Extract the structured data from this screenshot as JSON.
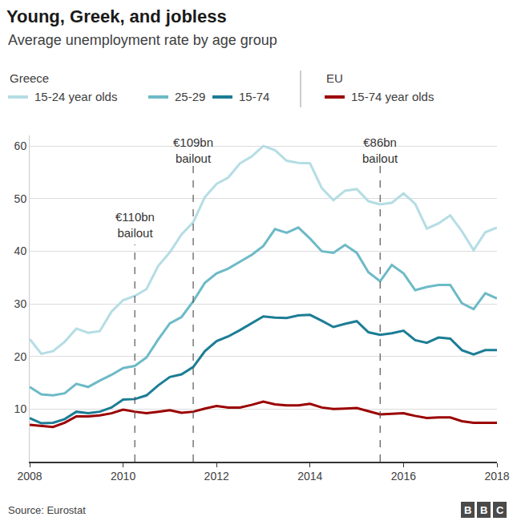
{
  "chart_data": {
    "type": "line",
    "title": "Young, Greek, and jobless",
    "subtitle": "Average unemployment rate by age group",
    "source": "Source: Eurostat",
    "logo": "BBC",
    "x": [
      2008,
      2008.25,
      2008.5,
      2008.75,
      2009,
      2009.25,
      2009.5,
      2009.75,
      2010,
      2010.25,
      2010.5,
      2010.75,
      2011,
      2011.25,
      2011.5,
      2011.75,
      2012,
      2012.25,
      2012.5,
      2012.75,
      2013,
      2013.25,
      2013.5,
      2013.75,
      2014,
      2014.25,
      2014.5,
      2014.75,
      2015,
      2015.25,
      2015.5,
      2015.75,
      2016,
      2016.25,
      2016.5,
      2016.75,
      2017,
      2017.25,
      2017.5,
      2017.75,
      2018
    ],
    "series": [
      {
        "name": "15-24 year olds",
        "group": "Greece",
        "color": "#b5dde4",
        "values": [
          23.3,
          20.5,
          21,
          22.8,
          25.3,
          24.5,
          24.8,
          28.5,
          30.7,
          31.5,
          32.8,
          37.2,
          39.8,
          43.2,
          45.5,
          50.3,
          52.8,
          54,
          56.7,
          58,
          60,
          59.2,
          57.2,
          56.8,
          56.7,
          52,
          49.7,
          51.5,
          51.8,
          49.5,
          48.9,
          49.2,
          51,
          49,
          44.3,
          45.3,
          46.8,
          43.8,
          40.2,
          43.6,
          44.5
        ]
      },
      {
        "name": "25-29",
        "group": "Greece",
        "color": "#6dbac7",
        "values": [
          14.2,
          12.8,
          12.6,
          13,
          14.8,
          14.2,
          15.4,
          16.5,
          17.8,
          18.2,
          19.8,
          23.2,
          26.3,
          27.5,
          30.5,
          34,
          35.8,
          36.7,
          38,
          39.3,
          41,
          44.2,
          43.5,
          44.5,
          42.4,
          40,
          39.7,
          41.2,
          39.7,
          36,
          34.3,
          37.4,
          35.8,
          32.6,
          33.2,
          33.6,
          33.6,
          30.1,
          29,
          32,
          31
        ]
      },
      {
        "name": "15-74",
        "group": "Greece",
        "color": "#1c7d95",
        "values": [
          8.3,
          7.3,
          7.4,
          8.1,
          9.5,
          9.2,
          9.5,
          10.3,
          11.8,
          11.9,
          12.6,
          14.5,
          16.1,
          16.6,
          18,
          21,
          22.9,
          23.8,
          25,
          26.3,
          27.6,
          27.4,
          27.3,
          27.8,
          27.9,
          26.8,
          25.6,
          26.2,
          26.7,
          24.6,
          24.1,
          24.4,
          24.9,
          23.1,
          22.6,
          23.6,
          23.4,
          21.2,
          20.4,
          21.2,
          21.2
        ]
      },
      {
        "name": "15-74 year olds",
        "group": "EU",
        "color": "#9b0000",
        "values": [
          7,
          6.8,
          6.6,
          7.4,
          8.6,
          8.6,
          8.8,
          9.2,
          9.9,
          9.5,
          9.2,
          9.5,
          9.8,
          9.3,
          9.5,
          10.1,
          10.6,
          10.3,
          10.3,
          10.8,
          11.4,
          10.9,
          10.7,
          10.7,
          11,
          10.3,
          10,
          10.1,
          10.2,
          9.6,
          9,
          9.1,
          9.2,
          8.7,
          8.3,
          8.4,
          8.4,
          7.7,
          7.4,
          7.4,
          7.4
        ]
      }
    ],
    "xlim": [
      2008,
      2018
    ],
    "xticks": [
      2008,
      2010,
      2012,
      2014,
      2016,
      2018
    ],
    "ylim": [
      0,
      62
    ],
    "yticks": [
      10,
      20,
      30,
      40,
      50,
      60
    ],
    "grid": true,
    "annotations": [
      {
        "x": 2010.25,
        "text": "€110bn bailout"
      },
      {
        "x": 2011.5,
        "text": "€109bn bailout"
      },
      {
        "x": 2015.5,
        "text": "€86bn bailout"
      }
    ]
  }
}
